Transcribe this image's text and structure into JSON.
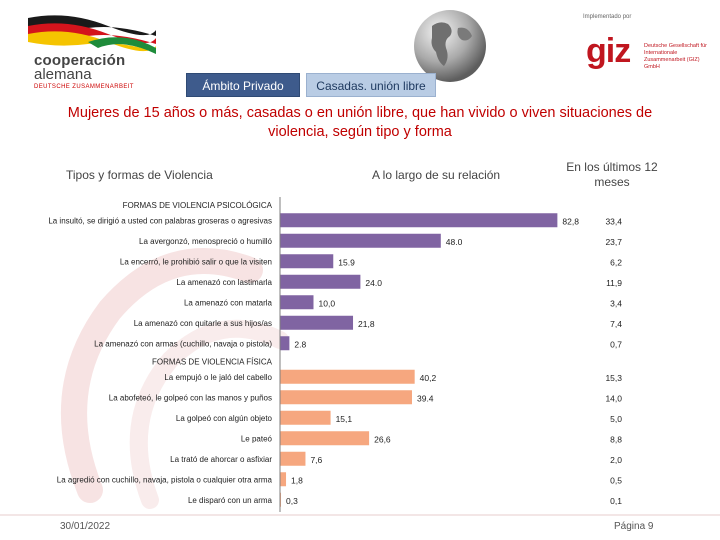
{
  "header": {
    "coop_line1": "cooperación",
    "coop_line2": "alemana",
    "coop_line3": "DEUTSCHE ZUSAMMENARBEIT",
    "implemented_by": "Implementado por",
    "giz_logo": "giz",
    "giz_subtitle": "Deutsche Gesellschaft für Internationale Zusammenarbeit (GIZ) GmbH"
  },
  "tabs": [
    {
      "label": "Ámbito Privado",
      "active": true
    },
    {
      "label": "Casadas. unión libre",
      "active": false
    }
  ],
  "colors": {
    "psych": "#8064a2",
    "phys": "#f6a77f",
    "title": "#c00000",
    "axis": "#7f7f7f"
  },
  "chart_data": {
    "type": "bar",
    "orientation": "horizontal",
    "title": "Mujeres de 15 años o más, casadas o en unión libre, que han vivido o viven situaciones de violencia, según tipo y forma",
    "column_headers": {
      "types": "Tipos y formas de Violencia",
      "lifetime": "A lo largo de su relación",
      "last12": "En los últimos 12 meses"
    },
    "xlim": [
      0,
      100
    ],
    "groups": [
      {
        "name": "FORMAS DE VIOLENCIA PSICOLÓGICA",
        "color_key": "psych",
        "categories": [
          "La insultó, se dirigió a usted con palabras groseras o agresivas",
          "La avergonzó, menospreció o humilló",
          "La encerró, le prohibió salir o que la visiten",
          "La amenazó con lastimarla",
          "La amenazó con matarla",
          "La amenazó con quitarle a sus hijos/as",
          "La amenazó con armas (cuchillo, navaja o pistola)"
        ],
        "lifetime": [
          82.8,
          48.0,
          15.9,
          24.0,
          10.0,
          21.8,
          2.8
        ],
        "lifetime_labels": [
          "82,8",
          "48.0",
          "15.9",
          "24.0",
          "10,0",
          "21,8",
          "2.8"
        ],
        "last12": [
          33.4,
          23.7,
          6.2,
          11.9,
          3.4,
          7.4,
          0.7
        ],
        "last12_labels": [
          "33,4",
          "23,7",
          "6,2",
          "11,9",
          "3,4",
          "7,4",
          "0,7"
        ]
      },
      {
        "name": "FORMAS DE VIOLENCIA FÍSICA",
        "color_key": "phys",
        "categories": [
          "La empujó o le jaló del cabello",
          "La abofeteó, le golpeó con las manos y puños",
          "La golpeó con algún objeto",
          "Le pateó",
          "La trató de ahorcar o asfixiar",
          "La agredió con cuchillo, navaja, pistola o cualquier otra arma",
          "Le disparó con un arma"
        ],
        "lifetime": [
          40.2,
          39.4,
          15.1,
          26.6,
          7.6,
          1.8,
          0.3
        ],
        "lifetime_labels": [
          "40,2",
          "39.4",
          "15,1",
          "26,6",
          "7,6",
          "1,8",
          "0,3"
        ],
        "last12": [
          15.3,
          14.0,
          5.0,
          8.8,
          2.0,
          0.5,
          0.1
        ],
        "last12_labels": [
          "15,3",
          "14,0",
          "5,0",
          "8,8",
          "2,0",
          "0,5",
          "0,1"
        ]
      }
    ]
  },
  "footer": {
    "date": "30/01/2022",
    "page": "Página 9"
  }
}
